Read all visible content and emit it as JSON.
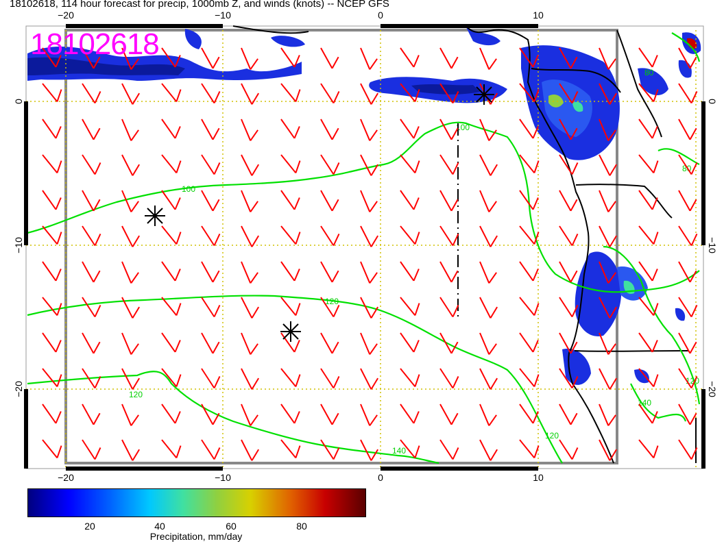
{
  "title": "18102618, 114 hour forecast for precip, 1000mb Z, and winds (knots) -- NCEP GFS",
  "stamp": "18102618",
  "axes": {
    "lon_ticks": [
      "−20",
      "−10",
      "0",
      "10"
    ],
    "lat_ticks": [
      "0",
      "−10",
      "−20"
    ],
    "lat_ticks_right": [
      "0",
      "−10",
      "−20"
    ]
  },
  "contour_labels": [
    "100",
    "100",
    "120",
    "120",
    "120",
    "140",
    "140",
    "80",
    "80",
    "120"
  ],
  "colorbar": {
    "label": "Precipitation, mm/day",
    "ticks": [
      "20",
      "40",
      "60",
      "80"
    ],
    "tick_values": [
      20,
      40,
      60,
      80
    ],
    "range": [
      0,
      100
    ],
    "colors": [
      "#00007f",
      "#0000ff",
      "#0060ff",
      "#00c8ff",
      "#40e0a0",
      "#90d040",
      "#d8d000",
      "#e06000",
      "#c80000",
      "#5a0000"
    ]
  },
  "colors": {
    "wind_barbs": "#ff0000",
    "contours": "#00e000",
    "graticule": "#d0c000",
    "stamp": "#ff00ff",
    "coast": "#000000"
  }
}
